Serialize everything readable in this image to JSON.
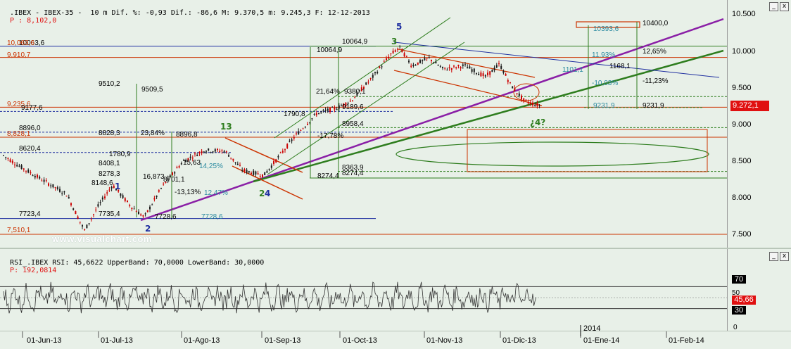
{
  "header": {
    "main": ".IBEX - IBEX-35 -  10 m Dif. %: -0,93 Dif.: -86,6 M: 9.370,5 m: 9.245,3 F: 12-12-2013",
    "p_prefix": "P : ",
    "p_value": "8,102,0",
    "rsi": "RSI_.IBEX RSI: 45,6622 UpperBand: 70,0000 LowerBand: 30,0000",
    "rsi_p": "P: 192,0814"
  },
  "colors": {
    "background": "#e8f0e8",
    "candle_up": "#1a1a1a",
    "candle_down": "#cc0000",
    "purple_line": "#8a1fa6",
    "green_line": "#2e7d1e",
    "blue_line": "#1f2fa0",
    "red_level": "#cc3300",
    "rsi_line": "#333333",
    "current_price_bg": "#e01010"
  },
  "watermark": "www.visualchart.com",
  "price_axis": [
    "10.500",
    "10.000",
    "9.500",
    "9.000",
    "8.500",
    "8.000",
    "7.500"
  ],
  "current_price": "9.272,1",
  "rsi_axis": {
    "upper": "70",
    "mid": "50",
    "lower": "30",
    "zero": "0",
    "current": "45,66"
  },
  "date_axis": [
    "01-Jun-13",
    "01-Jul-13",
    "01-Ago-13",
    "01-Sep-13",
    "01-Oct-13",
    "01-Nov-13",
    "01-Dic-13",
    "01-Ene-14",
    "01-Feb-14"
  ],
  "year_label": "2014",
  "window_controls": {
    "minimize": "_",
    "close": "x"
  },
  "wave_labels": {
    "w1": "1",
    "w2": "2",
    "w13": "13",
    "w2b": "2",
    "w4": "4",
    "w3": "3",
    "w5": "5",
    "w4q": "¿4?"
  },
  "annotations": {
    "l_10063": "10063,6",
    "l_10063b": "10,063,6",
    "l_9910": "9,910,7",
    "l_9235": "9,235,6",
    "l_9177": "9177,6",
    "l_8896": "8896,0",
    "l_8828": "8,828,1",
    "l_8620": "8620,4",
    "l_7723": "7723,4",
    "l_7510": "7,510,1",
    "a_9510": "9510,2",
    "a_9509": "9509,5",
    "a_8828": "8828,3",
    "a_2384": "23,84%",
    "a_8890": "8896,8",
    "a_8408": "8408,1",
    "a_8278": "8278,3",
    "a_8148": "8148,6",
    "a_1780": "1780,9",
    "a_16873": "16,873",
    "a_7735": "7735,4",
    "a_7728": "7728,6",
    "a_7728b": "7728,6",
    "a_8701": "8701,1",
    "a_1313": "-13,13%",
    "a_1425": "14,25%",
    "a_1247": "12,47%",
    "a_1563": "15,63",
    "b_10064": "10064,9",
    "b_10064b": "10064,9",
    "b_2164": "21,64%",
    "b_9380": "9380,1",
    "b_1790": "1790,8",
    "b_9189": "9189,6",
    "b_8958": "8958,4",
    "b_1778": "-17,78%",
    "b_8363": "8363,9",
    "b_8274": "8274,4",
    "b_8274b": "8274,4",
    "c_10400": "10400,0",
    "c_10393": "10393,6",
    "c_1193": "11,93%",
    "c_1101": "1101,1",
    "c_1168": "1168,1",
    "c_1003": "-10,03%",
    "c_1265": "12,65%",
    "c_1123": "-11,23%",
    "c_9231": "9231,9",
    "c_9231b": "9231,9"
  }
}
